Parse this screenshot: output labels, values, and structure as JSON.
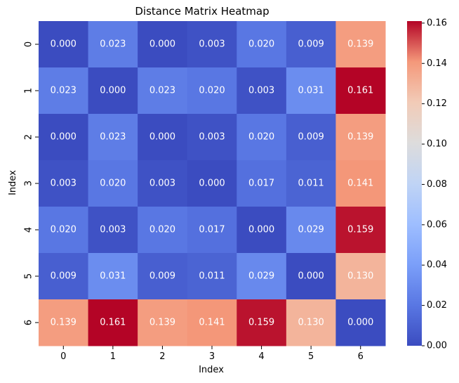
{
  "chart_data": {
    "type": "heatmap",
    "title": "Distance Matrix Heatmap",
    "xlabel": "Index",
    "ylabel": "Index",
    "x_categories": [
      "0",
      "1",
      "2",
      "3",
      "4",
      "5",
      "6"
    ],
    "y_categories": [
      "0",
      "1",
      "2",
      "3",
      "4",
      "5",
      "6"
    ],
    "values": [
      [
        0.0,
        0.023,
        0.0,
        0.003,
        0.02,
        0.009,
        0.139
      ],
      [
        0.023,
        0.0,
        0.023,
        0.02,
        0.003,
        0.031,
        0.161
      ],
      [
        0.0,
        0.023,
        0.0,
        0.003,
        0.02,
        0.009,
        0.139
      ],
      [
        0.003,
        0.02,
        0.003,
        0.0,
        0.017,
        0.011,
        0.141
      ],
      [
        0.02,
        0.003,
        0.02,
        0.017,
        0.0,
        0.029,
        0.159
      ],
      [
        0.009,
        0.031,
        0.009,
        0.011,
        0.029,
        0.0,
        0.13
      ],
      [
        0.139,
        0.161,
        0.139,
        0.141,
        0.159,
        0.13,
        0.0
      ]
    ],
    "annotation_format": "0.000",
    "colormap": "coolwarm",
    "colorbar": {
      "range": [
        0,
        0.161
      ],
      "ticks": [
        "0.00",
        "0.02",
        "0.04",
        "0.06",
        "0.08",
        "0.10",
        "0.12",
        "0.14",
        "0.16"
      ]
    }
  }
}
